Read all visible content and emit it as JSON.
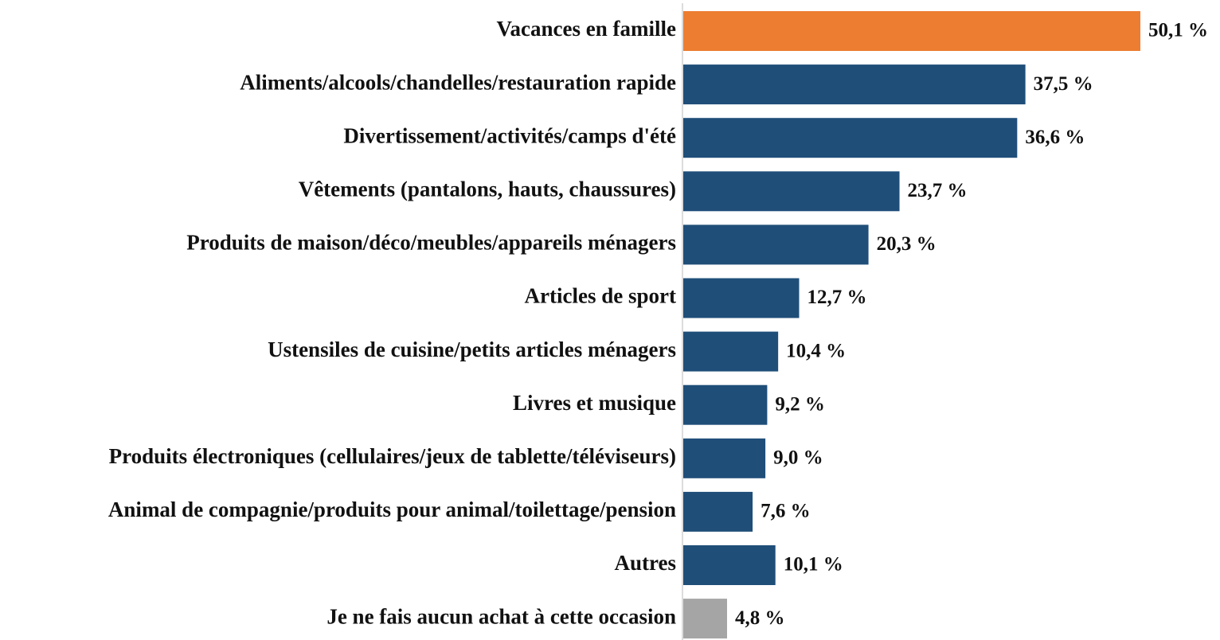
{
  "chart_data": {
    "type": "barh",
    "categories": [
      "Vacances en famille",
      "Aliments/alcools/chandelles/restauration rapide",
      "Divertissement/activités/camps d'été",
      "Vêtements (pantalons, hauts, chaussures)",
      "Produits de maison/déco/meubles/appareils ménagers",
      "Articles de sport",
      "Ustensiles de cuisine/petits articles ménagers",
      "Livres et musique",
      "Produits électroniques (cellulaires/jeux de tablette/téléviseurs)",
      "Animal de compagnie/produits pour animal/toilettage/pension",
      "Autres",
      "Je ne fais aucun achat à cette occasion"
    ],
    "values": [
      50.1,
      37.5,
      36.6,
      23.7,
      20.3,
      12.7,
      10.4,
      9.2,
      9.0,
      7.6,
      10.1,
      4.8
    ],
    "value_labels": [
      "50,1 %",
      "37,5 %",
      "36,6 %",
      "23,7 %",
      "20,3 %",
      "12,7 %",
      "10,4 %",
      "9,2 %",
      "9,0 %",
      "7,6 %",
      "10,1 %",
      "4,8 %"
    ],
    "colors": [
      "#ed7d31",
      "#1f4e79",
      "#1f4e79",
      "#1f4e79",
      "#1f4e79",
      "#1f4e79",
      "#1f4e79",
      "#1f4e79",
      "#1f4e79",
      "#1f4e79",
      "#1f4e79",
      "#a5a5a5"
    ]
  }
}
